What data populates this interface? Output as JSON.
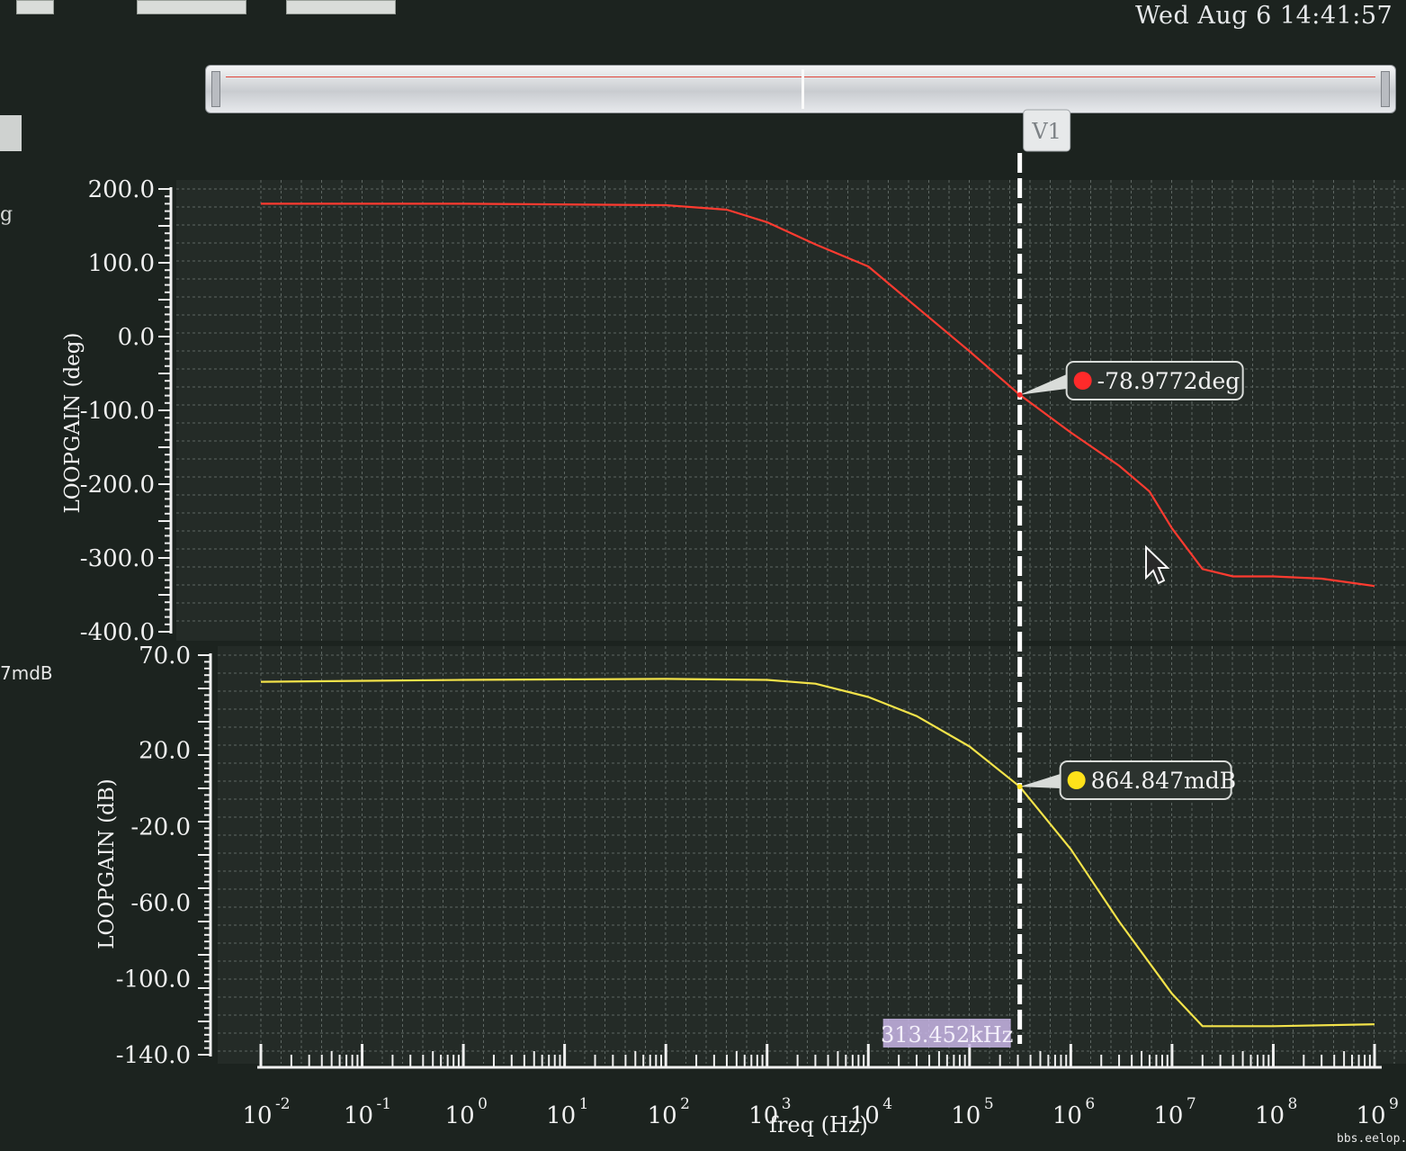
{
  "clock": "Wed Aug 6 14:41:57",
  "left_panel": {
    "letter": "g",
    "readout": "7mdB"
  },
  "watermark": "bbs.eelop.cn",
  "chart_data": [
    {
      "type": "line",
      "ylabel": "LOOPGAIN (deg)",
      "ylim": [
        -400,
        200
      ],
      "yticks": [
        "200.0",
        "100.0",
        "0.0",
        "-100.0",
        "-200.0",
        "-300.0",
        "-400.0"
      ],
      "x_scale": "log",
      "series": [
        {
          "color": "#ff3b30",
          "points": [
            [
              0.01,
              180
            ],
            [
              1,
              180
            ],
            [
              100,
              178
            ],
            [
              400,
              172
            ],
            [
              1000,
              155
            ],
            [
              3000,
              125
            ],
            [
              10000,
              95
            ],
            [
              30000,
              40
            ],
            [
              100000,
              -20
            ],
            [
              313452,
              -78.9772
            ],
            [
              1000000,
              -130
            ],
            [
              3000000,
              -175
            ],
            [
              6000000,
              -210
            ],
            [
              10000000,
              -260
            ],
            [
              20000000,
              -315
            ],
            [
              40000000,
              -325
            ],
            [
              100000000,
              -325
            ],
            [
              300000000,
              -328
            ],
            [
              1000000000,
              -338
            ]
          ]
        }
      ]
    },
    {
      "type": "line",
      "xlabel": "freq (Hz)",
      "ylabel": "LOOPGAIN (dB)",
      "ylim": [
        -140,
        70
      ],
      "yticks": [
        "70.0",
        "20.0",
        "-20.0",
        "-60.0",
        "-100.0",
        "-140.0"
      ],
      "x_scale": "log",
      "xlim": [
        "10^-2",
        "10^9"
      ],
      "xticks": [
        {
          "base": "10",
          "exp": "-2"
        },
        {
          "base": "10",
          "exp": "-1"
        },
        {
          "base": "10",
          "exp": "0"
        },
        {
          "base": "10",
          "exp": "1"
        },
        {
          "base": "10",
          "exp": "2"
        },
        {
          "base": "10",
          "exp": "3"
        },
        {
          "base": "10",
          "exp": "4"
        },
        {
          "base": "10",
          "exp": "5"
        },
        {
          "base": "10",
          "exp": "6"
        },
        {
          "base": "10",
          "exp": "7"
        },
        {
          "base": "10",
          "exp": "8"
        },
        {
          "base": "10",
          "exp": "9"
        }
      ],
      "series": [
        {
          "color": "#f3e34a",
          "points": [
            [
              0.01,
              56
            ],
            [
              1,
              57
            ],
            [
              100,
              57.5
            ],
            [
              1000,
              57
            ],
            [
              3000,
              55
            ],
            [
              10000,
              48
            ],
            [
              30000,
              38
            ],
            [
              100000,
              22
            ],
            [
              313452,
              0.864847
            ],
            [
              1000000,
              -32
            ],
            [
              3000000,
              -70
            ],
            [
              10000000,
              -108
            ],
            [
              20000000,
              -125
            ],
            [
              100000000,
              -125
            ],
            [
              1000000000,
              -124
            ]
          ]
        }
      ]
    }
  ],
  "cursor": {
    "label": "V1",
    "x_readout": "313.452kHz",
    "x_value": 313452,
    "markers": [
      {
        "value": "-78.9772deg",
        "color": "#ff2a2a"
      },
      {
        "value": "864.847mdB",
        "color": "#ffe21a"
      }
    ]
  }
}
